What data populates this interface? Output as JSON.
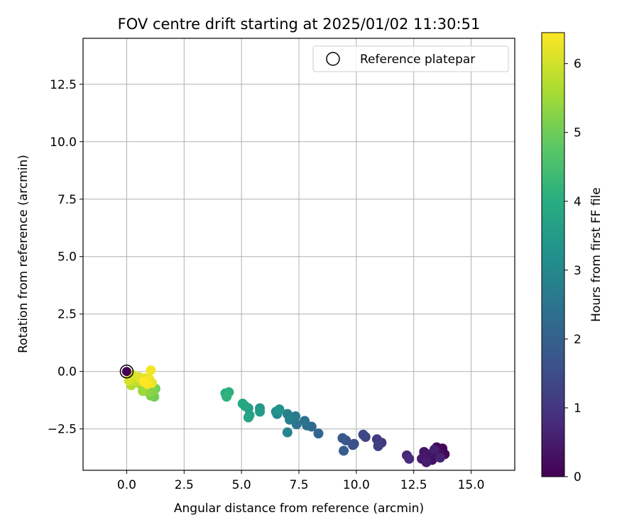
{
  "chart_data": {
    "type": "scatter",
    "title": "FOV centre drift starting at 2025/01/02 11:30:51",
    "xlabel": "Angular distance from reference (arcmin)",
    "ylabel": "Rotation from reference (arcmin)",
    "xlim": [
      -1.9,
      16.9
    ],
    "ylim": [
      -4.3,
      14.5
    ],
    "xticks": [
      0.0,
      2.5,
      5.0,
      7.5,
      10.0,
      12.5,
      15.0
    ],
    "yticks": [
      -2.5,
      0.0,
      2.5,
      5.0,
      7.5,
      10.0,
      12.5
    ],
    "grid": true,
    "legend": {
      "placement": "top-right",
      "entries": [
        "Reference platepar"
      ]
    },
    "reference_point": {
      "x": 0.0,
      "y": 0.0
    },
    "colorbar": {
      "label": "Hours from first FF file",
      "colormap": "viridis",
      "range": [
        0,
        6.45
      ],
      "ticks": [
        0,
        1,
        2,
        3,
        4,
        5,
        6
      ]
    },
    "points": [
      {
        "x": 13.5,
        "y": -3.3,
        "h": 0.05
      },
      {
        "x": 13.75,
        "y": -3.35,
        "h": 0.1
      },
      {
        "x": 13.85,
        "y": -3.6,
        "h": 0.15
      },
      {
        "x": 13.6,
        "y": -3.55,
        "h": 0.2
      },
      {
        "x": 13.45,
        "y": -3.7,
        "h": 0.25
      },
      {
        "x": 13.3,
        "y": -3.85,
        "h": 0.3
      },
      {
        "x": 13.1,
        "y": -3.6,
        "h": 0.35
      },
      {
        "x": 12.95,
        "y": -3.5,
        "h": 0.4
      },
      {
        "x": 12.85,
        "y": -3.8,
        "h": 0.45
      },
      {
        "x": 13.05,
        "y": -3.95,
        "h": 0.5
      },
      {
        "x": 13.4,
        "y": -3.4,
        "h": 0.55
      },
      {
        "x": 13.65,
        "y": -3.75,
        "h": 0.6
      },
      {
        "x": 12.2,
        "y": -3.65,
        "h": 0.7
      },
      {
        "x": 12.3,
        "y": -3.8,
        "h": 0.8
      },
      {
        "x": 11.1,
        "y": -3.1,
        "h": 1.0
      },
      {
        "x": 10.9,
        "y": -2.95,
        "h": 1.1
      },
      {
        "x": 10.95,
        "y": -3.25,
        "h": 1.2
      },
      {
        "x": 10.4,
        "y": -2.85,
        "h": 1.3
      },
      {
        "x": 10.3,
        "y": -2.75,
        "h": 1.4
      },
      {
        "x": 9.9,
        "y": -3.15,
        "h": 1.5
      },
      {
        "x": 9.85,
        "y": -3.2,
        "h": 1.6
      },
      {
        "x": 9.55,
        "y": -3.0,
        "h": 1.7
      },
      {
        "x": 9.4,
        "y": -2.9,
        "h": 1.8
      },
      {
        "x": 9.45,
        "y": -3.45,
        "h": 1.9
      },
      {
        "x": 8.35,
        "y": -2.7,
        "h": 2.1
      },
      {
        "x": 8.05,
        "y": -2.4,
        "h": 2.2
      },
      {
        "x": 7.85,
        "y": -2.35,
        "h": 2.3
      },
      {
        "x": 7.75,
        "y": -2.15,
        "h": 2.4
      },
      {
        "x": 7.4,
        "y": -2.3,
        "h": 2.5
      },
      {
        "x": 7.35,
        "y": -1.95,
        "h": 2.6
      },
      {
        "x": 7.1,
        "y": -2.1,
        "h": 2.7
      },
      {
        "x": 7.0,
        "y": -1.85,
        "h": 2.8
      },
      {
        "x": 7.0,
        "y": -2.65,
        "h": 2.9
      },
      {
        "x": 6.55,
        "y": -1.85,
        "h": 3.0
      },
      {
        "x": 6.5,
        "y": -1.75,
        "h": 3.2
      },
      {
        "x": 6.65,
        "y": -1.65,
        "h": 3.3
      },
      {
        "x": 5.8,
        "y": -1.6,
        "h": 3.4
      },
      {
        "x": 5.8,
        "y": -1.75,
        "h": 3.5
      },
      {
        "x": 5.3,
        "y": -1.6,
        "h": 3.6
      },
      {
        "x": 5.35,
        "y": -1.9,
        "h": 3.7
      },
      {
        "x": 5.3,
        "y": -2.0,
        "h": 3.75
      },
      {
        "x": 5.05,
        "y": -1.4,
        "h": 3.8
      },
      {
        "x": 5.15,
        "y": -1.5,
        "h": 3.85
      },
      {
        "x": 4.3,
        "y": -0.95,
        "h": 4.0
      },
      {
        "x": 4.45,
        "y": -0.9,
        "h": 4.1
      },
      {
        "x": 4.35,
        "y": -1.1,
        "h": 4.15
      },
      {
        "x": 1.25,
        "y": -0.75,
        "h": 5.0
      },
      {
        "x": 1.2,
        "y": -1.1,
        "h": 5.05
      },
      {
        "x": 1.05,
        "y": -1.05,
        "h": 5.1
      },
      {
        "x": 1.15,
        "y": -0.85,
        "h": 5.2
      },
      {
        "x": 0.95,
        "y": -0.9,
        "h": 5.3
      },
      {
        "x": 0.6,
        "y": -0.55,
        "h": 5.4
      },
      {
        "x": 0.7,
        "y": -0.85,
        "h": 5.5
      },
      {
        "x": 0.3,
        "y": -0.5,
        "h": 5.6
      },
      {
        "x": 0.2,
        "y": -0.6,
        "h": 5.7
      },
      {
        "x": 0.45,
        "y": -0.45,
        "h": 5.8
      },
      {
        "x": 0.35,
        "y": -0.3,
        "h": 5.9
      },
      {
        "x": 0.15,
        "y": -0.2,
        "h": 6.0
      },
      {
        "x": 0.1,
        "y": -0.4,
        "h": 6.05
      },
      {
        "x": 0.25,
        "y": -0.15,
        "h": 6.1
      },
      {
        "x": 0.55,
        "y": -0.25,
        "h": 6.15
      },
      {
        "x": 0.8,
        "y": -0.3,
        "h": 6.2
      },
      {
        "x": 1.1,
        "y": -0.5,
        "h": 6.25
      },
      {
        "x": 1.0,
        "y": -0.35,
        "h": 6.3
      },
      {
        "x": 1.05,
        "y": 0.05,
        "h": 6.35
      },
      {
        "x": 0.9,
        "y": -0.55,
        "h": 6.4
      },
      {
        "x": 0.75,
        "y": -0.45,
        "h": 6.45
      }
    ]
  }
}
